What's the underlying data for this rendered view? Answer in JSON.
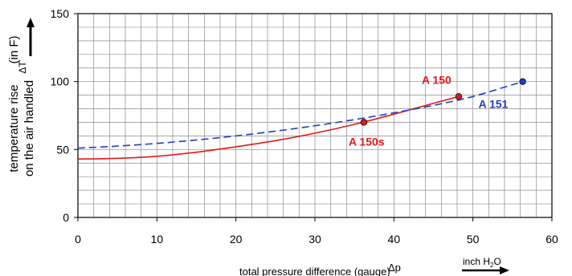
{
  "chart_data": {
    "type": "line",
    "xlim": [
      0,
      60
    ],
    "ylim": [
      0,
      150
    ],
    "x_ticks": [
      "0",
      "10",
      "20",
      "30",
      "40",
      "50",
      "60"
    ],
    "y_ticks": [
      "0",
      "50",
      "100",
      "150"
    ],
    "grid": true,
    "xlabel": "total pressure difference (gauge)",
    "xlabel_symbol": "Δp",
    "xunit_main": "inch H",
    "xunit_sub": "2",
    "xunit_end": "O",
    "ylabel_line1": "temperature rise",
    "ylabel_symbol": "ΔT",
    "ylabel_unit": "(in F)",
    "ylabel_line2": "on the air handled",
    "series": [
      {
        "name": "A 150",
        "color": "#e31a1c",
        "style": "solid",
        "x": [
          0,
          5,
          10,
          15,
          20,
          25,
          30,
          35,
          40,
          45,
          48.2
        ],
        "y": [
          43,
          43.5,
          45,
          48,
          52,
          56.5,
          62,
          68.5,
          76,
          84,
          89
        ]
      },
      {
        "name": "A 151",
        "color": "#1f3fbf",
        "style": "dashed",
        "x": [
          0,
          5,
          10,
          15,
          20,
          25,
          30,
          35,
          40,
          45,
          50,
          56.3
        ],
        "y": [
          51,
          52.5,
          54.5,
          57,
          60,
          63.5,
          67.5,
          72,
          77,
          82.5,
          89,
          100
        ]
      }
    ],
    "points": [
      {
        "label": "A 150s",
        "x": 36.2,
        "y": 70,
        "color": "#e31a1c"
      },
      {
        "label": "A 150",
        "x": 48.2,
        "y": 89,
        "color": "#e31a1c"
      },
      {
        "label": "A 151",
        "x": 56.3,
        "y": 100,
        "color": "#1f3fbf"
      }
    ]
  }
}
